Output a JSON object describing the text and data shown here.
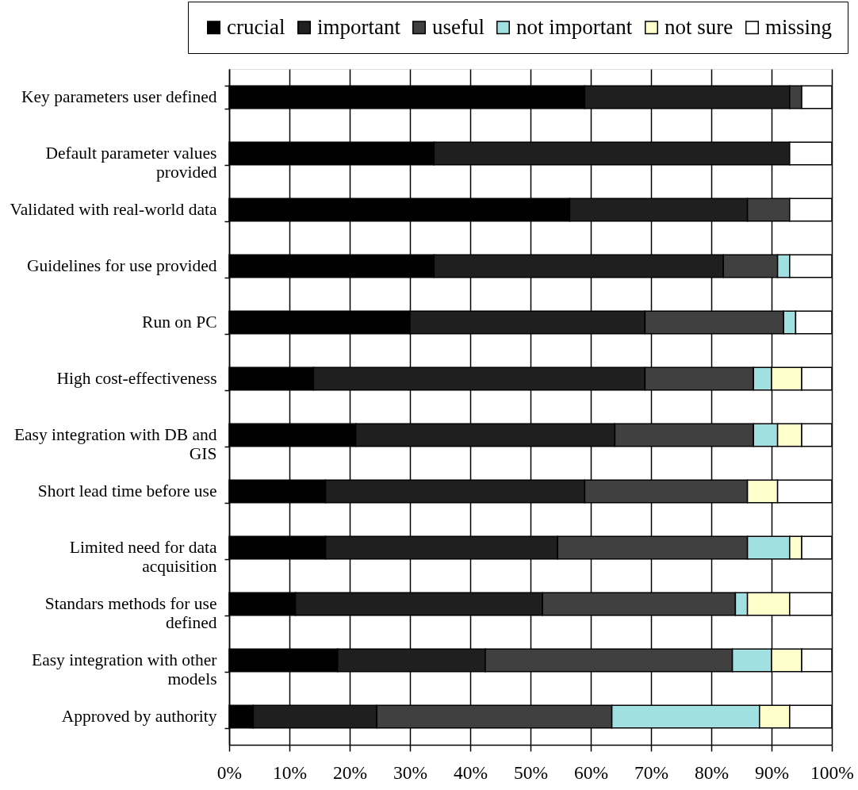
{
  "chart_data": {
    "type": "bar",
    "orientation": "horizontal",
    "stacked": true,
    "categories": [
      "Key parameters user defined",
      "Default parameter values provided",
      "Validated with real-world data",
      "Guidelines for use provided",
      "Run on PC",
      "High cost-effectiveness",
      "Easy integration with DB and GIS",
      "Short lead time before use",
      "Limited need for data acquisition",
      "Standars methods for use defined",
      "Easy integration with other models",
      "Approved by authority"
    ],
    "series": [
      {
        "name": "crucial",
        "color": "#000000",
        "values": [
          59,
          34,
          56.5,
          34,
          30,
          14,
          21,
          16,
          16,
          11,
          18,
          4
        ]
      },
      {
        "name": "important",
        "color": "#1f1f1f",
        "values": [
          34,
          59,
          29.5,
          48,
          39,
          55,
          43,
          43,
          38.5,
          41,
          24.5,
          20.5
        ]
      },
      {
        "name": "useful",
        "color": "#404040",
        "values": [
          2,
          null,
          7,
          9,
          23,
          18,
          23,
          27,
          31.5,
          32,
          41,
          39
        ]
      },
      {
        "name": "not important",
        "color": "#a0e0e0",
        "values": [
          null,
          null,
          null,
          2,
          2,
          3,
          4,
          null,
          7,
          2,
          6.5,
          24.5
        ]
      },
      {
        "name": "not sure",
        "color": "#ffffcc",
        "values": [
          null,
          null,
          null,
          null,
          null,
          5,
          4,
          5,
          2,
          7,
          5,
          5
        ]
      },
      {
        "name": "missing",
        "color": "#ffffff",
        "values": [
          5,
          7,
          7,
          7,
          6,
          5,
          5,
          9,
          5,
          7,
          5,
          7
        ]
      }
    ],
    "xlim": [
      0,
      100
    ],
    "xticks": [
      {
        "value": 0,
        "label": "0%"
      },
      {
        "value": 10,
        "label": "10%"
      },
      {
        "value": 20,
        "label": "20%"
      },
      {
        "value": 30,
        "label": "30%"
      },
      {
        "value": 40,
        "label": "40%"
      },
      {
        "value": 50,
        "label": "50%"
      },
      {
        "value": 60,
        "label": "60%"
      },
      {
        "value": 70,
        "label": "70%"
      },
      {
        "value": 80,
        "label": "80%"
      },
      {
        "value": 90,
        "label": "90%"
      },
      {
        "value": 100,
        "label": "100%"
      }
    ],
    "grid": "x",
    "legend": "top"
  }
}
